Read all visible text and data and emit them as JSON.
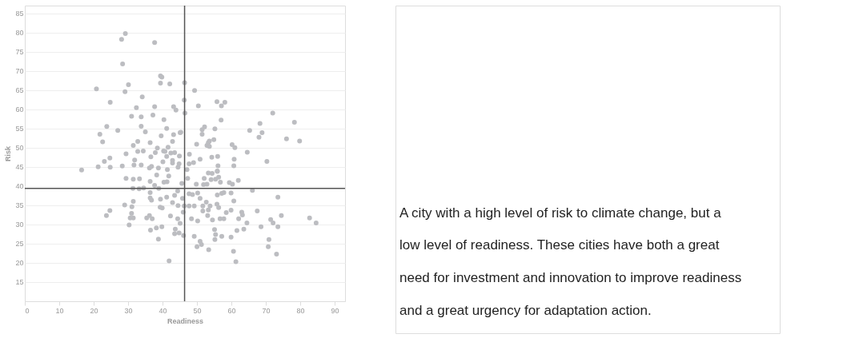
{
  "chart_data": [
    {
      "type": "scatter",
      "xlabel": "Readiness",
      "ylabel": "Risk",
      "xlim": [
        0,
        93
      ],
      "ylim": [
        10,
        87
      ],
      "xticks": [
        0,
        10,
        20,
        30,
        40,
        50,
        60,
        70,
        80,
        90
      ],
      "yticks": [
        15,
        20,
        25,
        30,
        35,
        40,
        45,
        50,
        55,
        60,
        65,
        70,
        75,
        80,
        85
      ],
      "grid": "y",
      "marker": "circle",
      "ref_lines": [
        {
          "axis": "x",
          "value": 46.4,
          "color": "#555555"
        },
        {
          "axis": "y",
          "value": 39.4,
          "color": "#555555"
        }
      ],
      "series": [
        {
          "color": "#bcbdc1",
          "x": [
            29.2,
            28.1,
            37.7,
            28.4,
            39.4,
            39.8,
            39.4,
            42.1,
            20.8,
            30.1,
            29.1,
            34.1,
            24.8,
            32.4,
            37.7,
            43.2,
            43.9,
            31.0,
            33.8,
            37.2,
            40.4,
            23.8,
            27.0,
            33.8,
            35.0,
            41.2,
            21.8,
            22.6,
            39.6,
            43.2,
            45.1,
            32.8,
            36.4,
            42.9,
            31.5,
            38.5,
            41.6,
            32.8,
            34.4,
            37.9,
            40.3,
            40.7,
            42.4,
            43.5,
            29.4,
            36.6,
            41.2,
            44.9,
            24.7,
            23.1,
            31.9,
            40.1,
            42.9,
            42.9,
            44.8,
            16.5,
            21.3,
            24.8,
            28.3,
            31.7,
            33.8,
            36.2,
            36.8,
            38.8,
            41.4,
            44.5,
            46.3,
            46.5,
            46.4,
            49.3,
            50.4,
            55.8,
            57.1,
            58.1,
            72.0,
            57.0,
            78.3,
            68.3,
            52.2,
            51.5,
            55.2,
            65.3,
            68.9,
            51.5,
            45.3,
            68.0,
            76.0,
            79.8,
            54.9,
            53.6,
            53.3,
            52.9,
            53.6,
            49.9,
            60.2,
            61.0,
            64.6,
            47.8,
            54.3,
            56.0,
            50.9,
            60.8,
            70.3,
            49.0,
            47.7,
            56.1,
            60.7,
            47.1,
            55.9,
            29.4,
            31.5,
            33.3,
            38.3,
            40.4,
            41.3,
            41.8,
            45.6,
            31.4,
            33.2,
            34.5,
            36.4,
            37.7,
            38.9,
            36.4,
            36.4,
            36.8,
            39.4,
            41.2,
            43.5,
            42.9,
            44.5,
            31.5,
            29.0,
            31.1,
            39.3,
            39.9,
            46.3,
            46.0,
            23.7,
            24.7,
            31.0,
            30.6,
            31.5,
            35.4,
            36.2,
            37.0,
            42.3,
            44.4,
            45.1,
            30.3,
            36.5,
            38.2,
            39.8,
            43.7,
            43.5,
            44.8,
            46.1,
            38.8,
            41.9,
            47.3,
            53.3,
            54.4,
            55.9,
            52.1,
            54.1,
            55.4,
            56.3,
            56.8,
            59.4,
            60.3,
            62.0,
            49.8,
            51.9,
            52.9,
            66.1,
            44.4,
            47.7,
            48.7,
            50.2,
            55.9,
            57.2,
            57.8,
            59.9,
            73.5,
            45.8,
            50.9,
            60.7,
            52.7,
            53.8,
            55.8,
            56.3,
            67.5,
            47.7,
            49.2,
            51.7,
            51.7,
            53.3,
            58.5,
            59.9,
            63.0,
            63.2,
            74.5,
            82.7,
            84.6,
            48.4,
            50.2,
            53.1,
            54.5,
            56.7,
            57.8,
            62.1,
            64.5,
            71.4,
            72.1,
            68.6,
            73.5,
            61.6,
            63.6,
            55.1,
            55.4,
            57.2,
            59.9,
            49.2,
            70.9,
            55.2,
            50.9,
            51.3,
            50.0,
            70.7,
            53.4,
            60.6,
            73.1,
            61.3
          ],
          "values": [
            79.7,
            78.2,
            77.4,
            71.8,
            68.7,
            68.4,
            66.8,
            66.6,
            65.3,
            66.4,
            64.6,
            63.2,
            61.8,
            60.4,
            60.7,
            60.7,
            59.8,
            58.2,
            58.0,
            58.5,
            57.3,
            55.5,
            54.5,
            55.6,
            54.1,
            55.0,
            53.5,
            51.5,
            53.1,
            53.4,
            53.9,
            51.6,
            51.3,
            51.6,
            50.6,
            49.9,
            50.1,
            49.0,
            49.1,
            48.7,
            49.1,
            49.0,
            48.6,
            48.7,
            48.4,
            47.6,
            47.7,
            47.8,
            47.3,
            46.4,
            46.8,
            46.3,
            46.7,
            46.0,
            45.8,
            44.2,
            45.0,
            44.9,
            45.2,
            45.5,
            45.5,
            44.7,
            45.1,
            44.7,
            44.3,
            44.9,
            62.4,
            59.0,
            66.9,
            64.9,
            60.9,
            62.0,
            60.9,
            61.8,
            59.0,
            57.2,
            56.6,
            56.3,
            55.4,
            54.7,
            54.9,
            54.5,
            53.9,
            53.5,
            54.0,
            52.7,
            52.3,
            51.7,
            52.1,
            51.7,
            51.3,
            50.6,
            50.3,
            50.9,
            50.8,
            50.0,
            48.8,
            48.3,
            47.5,
            47.7,
            47.0,
            47.0,
            46.4,
            46.1,
            45.8,
            45.3,
            45.3,
            44.3,
            43.9,
            42.0,
            41.8,
            41.9,
            42.9,
            41.0,
            41.1,
            42.6,
            40.7,
            39.4,
            39.3,
            39.5,
            41.2,
            40.2,
            39.4,
            38.3,
            36.9,
            36.3,
            36.6,
            37.1,
            37.6,
            35.7,
            34.9,
            36.0,
            35.1,
            34.6,
            34.5,
            34.3,
            34.8,
            33.2,
            32.3,
            33.6,
            32.9,
            31.7,
            31.7,
            31.7,
            32.3,
            31.5,
            32.2,
            31.5,
            30.3,
            29.9,
            28.5,
            29.1,
            29.4,
            28.8,
            27.6,
            27.8,
            27.1,
            26.2,
            20.5,
            42.0,
            43.4,
            43.3,
            43.8,
            42.0,
            41.7,
            41.8,
            42.3,
            41.0,
            40.9,
            40.5,
            41.5,
            40.5,
            40.4,
            40.5,
            38.9,
            38.7,
            38.0,
            37.8,
            38.2,
            37.7,
            38.1,
            38.3,
            38.2,
            37.1,
            36.8,
            36.8,
            36.1,
            35.8,
            34.8,
            35.3,
            34.4,
            33.5,
            34.8,
            34.8,
            34.8,
            33.5,
            33.8,
            33.1,
            33.7,
            33.2,
            32.5,
            32.3,
            31.7,
            30.4,
            31.5,
            30.9,
            32.3,
            31.2,
            31.5,
            31.5,
            31.5,
            30.4,
            31.3,
            30.4,
            29.4,
            29.4,
            28.4,
            28.8,
            28.7,
            27.4,
            26.9,
            26.7,
            26.9,
            26.1,
            26.1,
            25.6,
            24.8,
            24.2,
            24.2,
            23.4,
            23.0,
            22.3,
            20.3
          ]
        }
      ]
    },
    {
      "type": "other",
      "annotations": [
        "A city with a high level of risk to climate change, but a low level of readiness. These cities have both a great need for investment and innovation to improve readiness and a great urgency for adaptation action."
      ]
    }
  ]
}
